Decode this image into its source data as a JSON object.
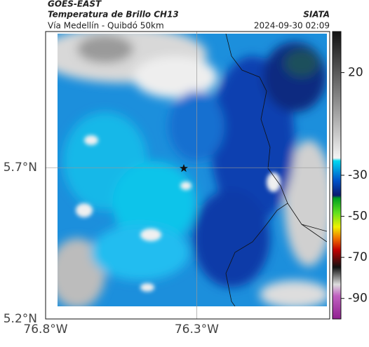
{
  "header": {
    "title": "GOES-EAST",
    "subtitle": "Temperatura de Brillo CH13",
    "source": "SIATA",
    "route": "Vía Medellín - Quibdó 50km",
    "timestamp": "2024-09-30 02:09"
  },
  "map": {
    "xlim": [
      -76.8,
      -75.86
    ],
    "ylim": [
      5.2,
      6.15
    ],
    "xticks": [
      {
        "value": -76.8,
        "label": "76.8°W"
      },
      {
        "value": -76.3,
        "label": "76.3°W"
      }
    ],
    "yticks": [
      {
        "value": 5.2,
        "label": "5.2°N"
      },
      {
        "value": 5.7,
        "label": "5.7°N"
      }
    ],
    "grid": true
  },
  "colorbar": {
    "lim": [
      -100,
      40
    ],
    "ticks": [
      20,
      -30,
      -50,
      -70,
      -90
    ]
  }
}
